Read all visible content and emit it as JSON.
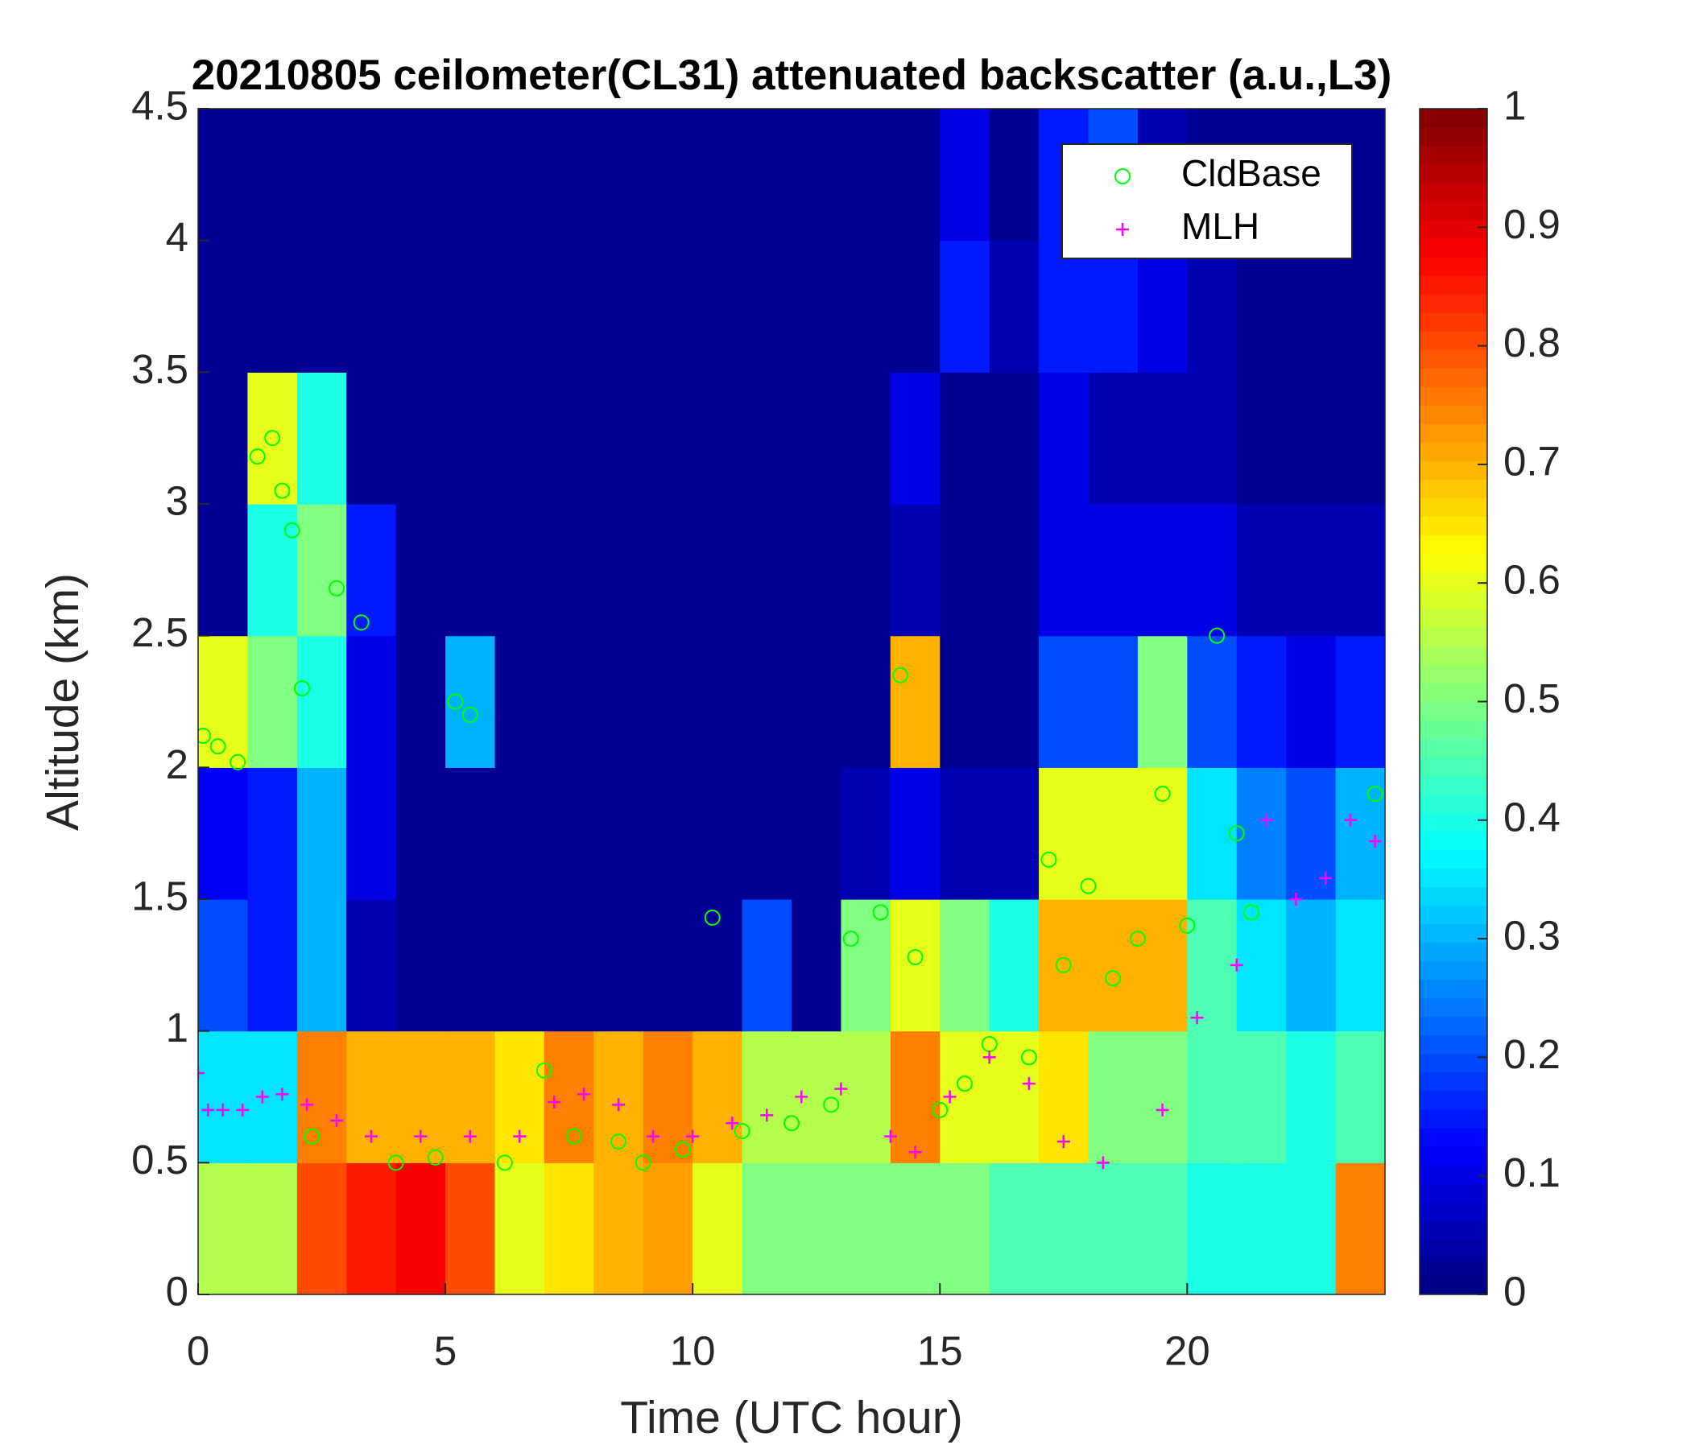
{
  "chart_data": {
    "type": "heatmap",
    "title": "20210805 ceilometer(CL31) attenuated backscatter (a.u.,L3)",
    "xlabel": "Time (UTC hour)",
    "ylabel": "Altitude (km)",
    "xlim": [
      0,
      24
    ],
    "ylim": [
      0,
      4.5
    ],
    "xticks": [
      0,
      5,
      10,
      15,
      20
    ],
    "yticks": [
      0,
      0.5,
      1,
      1.5,
      2,
      2.5,
      3,
      3.5,
      4,
      4.5
    ],
    "colormap": "jet",
    "clim": [
      0,
      1
    ],
    "cticks": [
      0,
      0.1,
      0.2,
      0.3,
      0.4,
      0.5,
      0.6,
      0.7,
      0.8,
      0.9,
      1
    ],
    "x": [
      0.5,
      1.5,
      2.5,
      3.5,
      4.5,
      5.5,
      6.5,
      7.5,
      8.5,
      9.5,
      10.5,
      11.5,
      12.5,
      13.5,
      14.5,
      15.5,
      16.5,
      17.5,
      18.5,
      19.5,
      20.5,
      21.5,
      22.5,
      23.5
    ],
    "y": [
      0.25,
      0.75,
      1.25,
      1.75,
      2.25,
      2.75,
      3.25,
      3.75,
      4.25
    ],
    "z": [
      [
        0.55,
        0.55,
        0.8,
        0.85,
        0.88,
        0.8,
        0.6,
        0.65,
        0.7,
        0.72,
        0.6,
        0.5,
        0.5,
        0.5,
        0.5,
        0.5,
        0.45,
        0.45,
        0.45,
        0.45,
        0.4,
        0.4,
        0.4,
        0.75
      ],
      [
        0.35,
        0.35,
        0.75,
        0.7,
        0.7,
        0.7,
        0.65,
        0.75,
        0.7,
        0.75,
        0.7,
        0.55,
        0.55,
        0.55,
        0.75,
        0.6,
        0.6,
        0.65,
        0.5,
        0.5,
        0.45,
        0.45,
        0.4,
        0.45
      ],
      [
        0.2,
        0.15,
        0.3,
        0.05,
        0.02,
        0.02,
        0.02,
        0.02,
        0.02,
        0.02,
        0.02,
        0.2,
        0.02,
        0.5,
        0.6,
        0.5,
        0.4,
        0.7,
        0.7,
        0.7,
        0.45,
        0.35,
        0.3,
        0.35
      ],
      [
        0.12,
        0.15,
        0.3,
        0.1,
        0.02,
        0.02,
        0.02,
        0.02,
        0.02,
        0.02,
        0.02,
        0.02,
        0.02,
        0.05,
        0.1,
        0.05,
        0.05,
        0.6,
        0.6,
        0.6,
        0.35,
        0.25,
        0.2,
        0.3
      ],
      [
        0.6,
        0.5,
        0.4,
        0.1,
        0.02,
        0.3,
        0.02,
        0.02,
        0.02,
        0.02,
        0.02,
        0.02,
        0.02,
        0.02,
        0.7,
        0.02,
        0.02,
        0.2,
        0.2,
        0.5,
        0.2,
        0.15,
        0.1,
        0.15
      ],
      [
        0.02,
        0.4,
        0.5,
        0.15,
        0.02,
        0.02,
        0.02,
        0.02,
        0.02,
        0.02,
        0.02,
        0.02,
        0.02,
        0.02,
        0.05,
        0.02,
        0.02,
        0.1,
        0.1,
        0.1,
        0.1,
        0.05,
        0.05,
        0.05
      ],
      [
        0.02,
        0.6,
        0.4,
        0.02,
        0.02,
        0.02,
        0.02,
        0.02,
        0.02,
        0.02,
        0.02,
        0.02,
        0.02,
        0.02,
        0.1,
        0.02,
        0.02,
        0.1,
        0.05,
        0.05,
        0.05,
        0.02,
        0.02,
        0.02
      ],
      [
        0.02,
        0.02,
        0.02,
        0.02,
        0.02,
        0.02,
        0.02,
        0.02,
        0.02,
        0.02,
        0.02,
        0.02,
        0.02,
        0.02,
        0.02,
        0.15,
        0.05,
        0.15,
        0.15,
        0.1,
        0.05,
        0.02,
        0.02,
        0.02
      ],
      [
        0.02,
        0.02,
        0.02,
        0.02,
        0.02,
        0.02,
        0.02,
        0.02,
        0.02,
        0.02,
        0.02,
        0.02,
        0.02,
        0.02,
        0.02,
        0.1,
        0.02,
        0.15,
        0.2,
        0.05,
        0.02,
        0.02,
        0.02,
        0.02
      ]
    ],
    "series": [
      {
        "name": "CldBase",
        "color": "#00ff00",
        "marker": "o",
        "x": [
          0.1,
          0.4,
          0.8,
          1.2,
          1.5,
          1.7,
          1.9,
          2.1,
          2.3,
          2.8,
          3.3,
          4.0,
          4.8,
          5.2,
          5.5,
          6.2,
          7.0,
          7.6,
          8.5,
          9.0,
          9.8,
          10.4,
          11.0,
          12.0,
          12.8,
          13.2,
          13.8,
          14.2,
          14.5,
          15.0,
          15.5,
          16.0,
          16.8,
          17.2,
          17.5,
          18.0,
          18.5,
          19.0,
          19.5,
          20.0,
          20.6,
          21.0,
          21.3,
          23.8
        ],
        "y": [
          2.12,
          2.08,
          2.02,
          3.18,
          3.25,
          3.05,
          2.9,
          2.3,
          0.6,
          2.68,
          2.55,
          0.5,
          0.52,
          2.25,
          2.2,
          0.5,
          0.85,
          0.6,
          0.58,
          0.5,
          0.55,
          1.43,
          0.62,
          0.65,
          0.72,
          1.35,
          1.45,
          2.35,
          1.28,
          0.7,
          0.8,
          0.95,
          0.9,
          1.65,
          1.25,
          1.55,
          1.2,
          1.35,
          1.9,
          1.4,
          2.5,
          1.75,
          1.45,
          1.9
        ]
      },
      {
        "name": "MLH",
        "color": "#ff00ff",
        "marker": "+",
        "x": [
          0.0,
          0.2,
          0.5,
          0.9,
          1.3,
          1.7,
          2.2,
          2.8,
          3.5,
          4.5,
          5.5,
          6.5,
          7.2,
          7.8,
          8.5,
          9.2,
          10.0,
          10.8,
          11.5,
          12.2,
          13.0,
          14.0,
          14.5,
          15.2,
          16.0,
          16.8,
          17.5,
          18.3,
          19.5,
          20.2,
          21.0,
          21.6,
          22.2,
          22.8,
          23.3,
          23.8
        ],
        "y": [
          0.84,
          0.7,
          0.7,
          0.7,
          0.75,
          0.76,
          0.72,
          0.66,
          0.6,
          0.6,
          0.6,
          0.6,
          0.73,
          0.76,
          0.72,
          0.6,
          0.6,
          0.65,
          0.68,
          0.75,
          0.78,
          0.6,
          0.54,
          0.75,
          0.9,
          0.8,
          0.58,
          0.5,
          0.7,
          1.05,
          1.25,
          1.8,
          1.5,
          1.58,
          1.8,
          1.72
        ]
      }
    ],
    "legend": "northeast"
  }
}
